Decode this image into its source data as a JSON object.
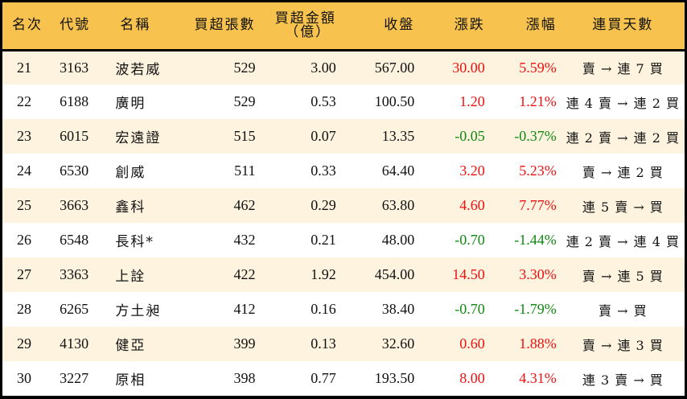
{
  "colors": {
    "header_bg": "#f7c24e",
    "row_alt_bg": "#fdf3de",
    "row_bg": "#ffffff",
    "up": "#ee1111",
    "down": "#118811",
    "border": "#000000"
  },
  "table": {
    "headers": {
      "rank": "名次",
      "code": "代號",
      "name": "名稱",
      "net_buy_volume": "買超張數",
      "net_buy_amount": "買超金額",
      "net_buy_amount_unit": "（億）",
      "close": "收盤",
      "change": "漲跌",
      "change_pct": "漲幅",
      "streak": "連買天數"
    },
    "rows": [
      {
        "rank": "21",
        "code": "3163",
        "name": "波若威",
        "volume": "529",
        "amount": "3.00",
        "close": "567.00",
        "change": "30.00",
        "pct": "5.59%",
        "dir": "up",
        "streak": "賣 → 連 7 買"
      },
      {
        "rank": "22",
        "code": "6188",
        "name": "廣明",
        "volume": "529",
        "amount": "0.53",
        "close": "100.50",
        "change": "1.20",
        "pct": "1.21%",
        "dir": "up",
        "streak": "連 4 賣 → 連 2 買"
      },
      {
        "rank": "23",
        "code": "6015",
        "name": "宏遠證",
        "volume": "515",
        "amount": "0.07",
        "close": "13.35",
        "change": "-0.05",
        "pct": "-0.37%",
        "dir": "down",
        "streak": "連 2 賣 → 連 2 買"
      },
      {
        "rank": "24",
        "code": "6530",
        "name": "創威",
        "volume": "511",
        "amount": "0.33",
        "close": "64.40",
        "change": "3.20",
        "pct": "5.23%",
        "dir": "up",
        "streak": "賣 → 連 2 買"
      },
      {
        "rank": "25",
        "code": "3663",
        "name": "鑫科",
        "volume": "462",
        "amount": "0.29",
        "close": "63.80",
        "change": "4.60",
        "pct": "7.77%",
        "dir": "up",
        "streak": "連 5 賣 → 買"
      },
      {
        "rank": "26",
        "code": "6548",
        "name": "長科*",
        "volume": "432",
        "amount": "0.21",
        "close": "48.00",
        "change": "-0.70",
        "pct": "-1.44%",
        "dir": "down",
        "streak": "連 2 賣 → 連 4 買"
      },
      {
        "rank": "27",
        "code": "3363",
        "name": "上詮",
        "volume": "422",
        "amount": "1.92",
        "close": "454.00",
        "change": "14.50",
        "pct": "3.30%",
        "dir": "up",
        "streak": "賣 → 連 5 買"
      },
      {
        "rank": "28",
        "code": "6265",
        "name": "方土昶",
        "volume": "412",
        "amount": "0.16",
        "close": "38.40",
        "change": "-0.70",
        "pct": "-1.79%",
        "dir": "down",
        "streak": "賣 → 買"
      },
      {
        "rank": "29",
        "code": "4130",
        "name": "健亞",
        "volume": "399",
        "amount": "0.13",
        "close": "32.60",
        "change": "0.60",
        "pct": "1.88%",
        "dir": "up",
        "streak": "賣 → 連 3 買"
      },
      {
        "rank": "30",
        "code": "3227",
        "name": "原相",
        "volume": "398",
        "amount": "0.77",
        "close": "193.50",
        "change": "8.00",
        "pct": "4.31%",
        "dir": "up",
        "streak": "連 3 賣 → 買"
      }
    ]
  }
}
